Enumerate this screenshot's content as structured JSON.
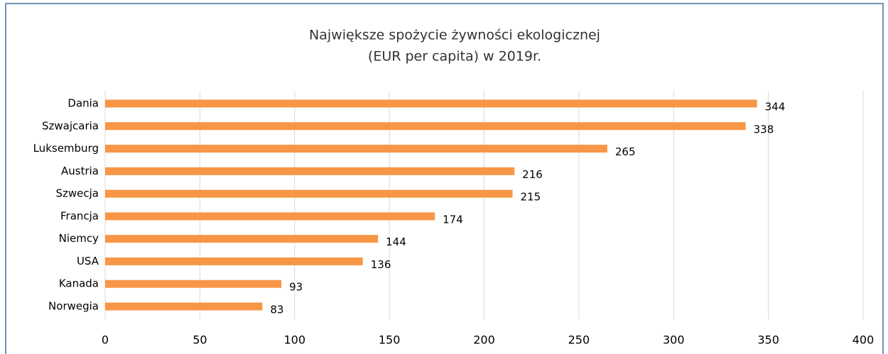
{
  "chart_data": {
    "type": "bar",
    "orientation": "horizontal",
    "title": [
      "Największe spożycie żywności ekologicznej",
      "(EUR per capita) w 2019r."
    ],
    "categories": [
      "Dania",
      "Szwajcaria",
      "Luksemburg",
      "Austria",
      "Szwecja",
      "Francja",
      "Niemcy",
      "USA",
      "Kanada",
      "Norwegia"
    ],
    "values": [
      344,
      338,
      265,
      216,
      215,
      174,
      144,
      136,
      93,
      83
    ],
    "color": "#f79646",
    "xlim": [
      0,
      400
    ],
    "xticks": [
      0,
      50,
      100,
      150,
      200,
      250,
      300,
      350,
      400
    ],
    "grid": true
  }
}
